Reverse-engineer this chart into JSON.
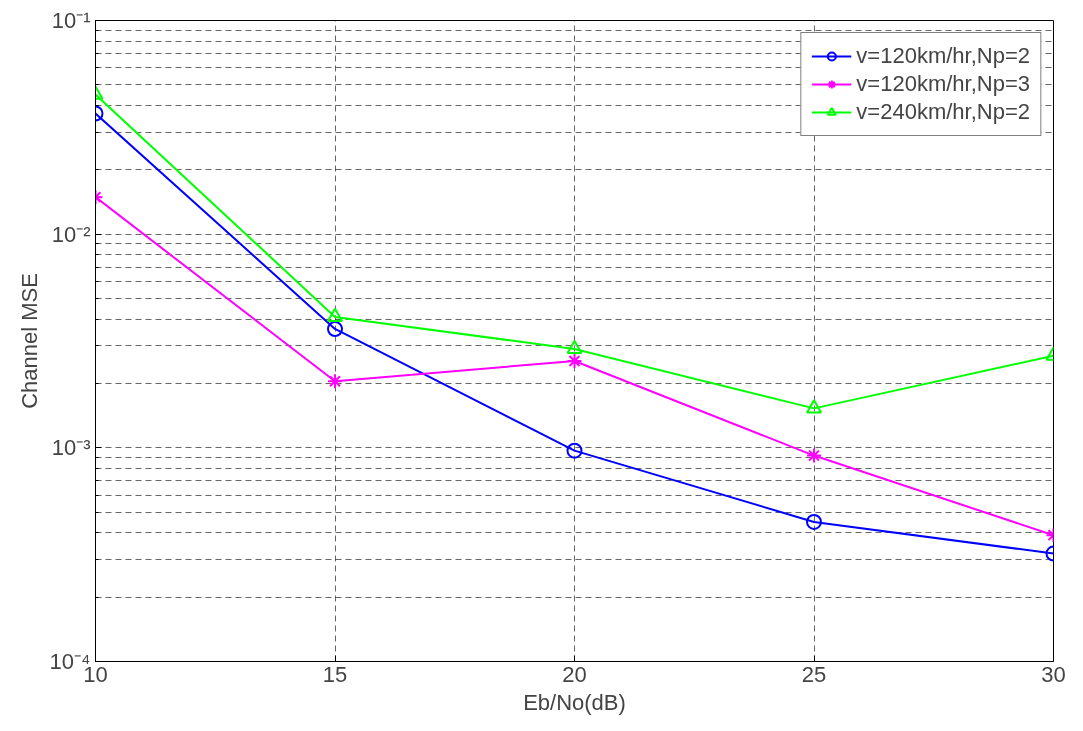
{
  "chart_data": {
    "type": "line",
    "xlabel": "Eb/No(dB)",
    "ylabel": "Channel MSE",
    "x": [
      10,
      15,
      20,
      25,
      30
    ],
    "series": [
      {
        "name": "v=120km/hr,Np=2",
        "color": "#0000ff",
        "marker": "circle",
        "values": [
          0.0367,
          0.0036,
          0.00097,
          0.00045,
          0.00032
        ]
      },
      {
        "name": "v=120km/hr,Np=3",
        "color": "#ff00ff",
        "marker": "cross",
        "values": [
          0.0149,
          0.00205,
          0.00255,
          0.00092,
          0.00039
        ]
      },
      {
        "name": "v=240km/hr,Np=2",
        "color": "#00ff00",
        "marker": "triangle",
        "values": [
          0.045,
          0.0041,
          0.0029,
          0.00153,
          0.0027
        ]
      }
    ],
    "log": "y",
    "xlim": [
      10,
      30
    ],
    "ylim": [
      0.0001,
      0.1
    ],
    "xticks": [
      10,
      15,
      20,
      25,
      30
    ],
    "yticks": [
      {
        "value": 0.0001,
        "label": "10⁻⁴"
      },
      {
        "value": 0.001,
        "label": "10⁻³"
      },
      {
        "value": 0.01,
        "label": "10⁻²"
      },
      {
        "value": 0.1,
        "label": "10⁻¹"
      }
    ],
    "grid": true,
    "legend": "top right",
    "line_style": "solid"
  }
}
